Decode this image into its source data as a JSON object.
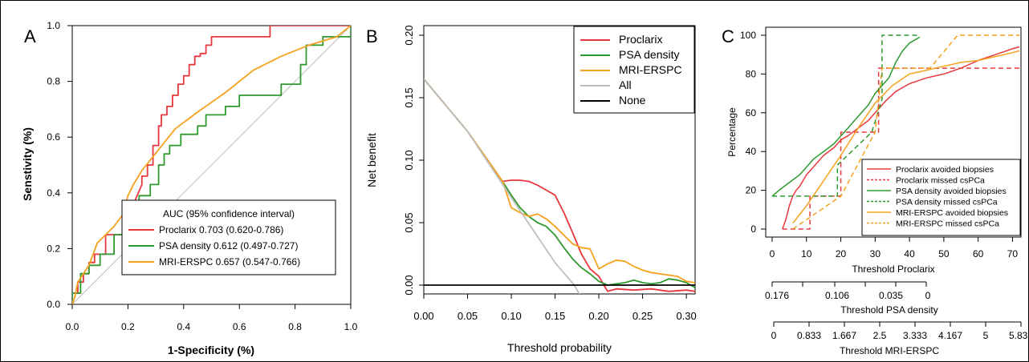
{
  "colors": {
    "proclarix": "#E8383D",
    "psa": "#2E9A2E",
    "mri": "#F5A11E",
    "all": "#BFBFBF",
    "none": "#000000",
    "diag": "#BBBBBB"
  },
  "chart_data": [
    {
      "type": "line",
      "panel_label": "A",
      "xlabel": "1-Specificity (%)",
      "ylabel": "Senstivity (%)",
      "xlim": [
        0,
        1
      ],
      "ylim": [
        0,
        1
      ],
      "x_ticks": [
        "0.0",
        "0.2",
        "0.4",
        "0.6",
        "0.8",
        "1.0"
      ],
      "y_ticks": [
        "0.0",
        "0.2",
        "0.4",
        "0.6",
        "0.8",
        "1.0"
      ],
      "legend_title": "AUC (95% confidence interval)",
      "legend_position": "bottom-right",
      "series": [
        {
          "name": "Proclarix",
          "auc": "0.703 (0.620-0.786)",
          "color": "#E8383D",
          "x": [
            0,
            0,
            0.02,
            0.02,
            0.04,
            0.04,
            0.06,
            0.06,
            0.08,
            0.08,
            0.12,
            0.12,
            0.18,
            0.18,
            0.22,
            0.25,
            0.25,
            0.27,
            0.27,
            0.29,
            0.29,
            0.31,
            0.31,
            0.32,
            0.32,
            0.34,
            0.34,
            0.36,
            0.36,
            0.38,
            0.38,
            0.4,
            0.4,
            0.42,
            0.42,
            0.44,
            0.44,
            0.46,
            0.46,
            0.48,
            0.48,
            0.5,
            0.5,
            0.52,
            0.52,
            0.55,
            0.55,
            0.6,
            0.6,
            0.66,
            0.66,
            0.71,
            0.71,
            1.0,
            1.0
          ],
          "y": [
            0,
            0.04,
            0.04,
            0.08,
            0.08,
            0.11,
            0.11,
            0.15,
            0.15,
            0.18,
            0.18,
            0.25,
            0.25,
            0.32,
            0.36,
            0.43,
            0.46,
            0.46,
            0.5,
            0.5,
            0.57,
            0.57,
            0.64,
            0.64,
            0.68,
            0.68,
            0.71,
            0.71,
            0.75,
            0.75,
            0.79,
            0.79,
            0.82,
            0.82,
            0.86,
            0.86,
            0.89,
            0.89,
            0.9,
            0.9,
            0.93,
            0.93,
            0.96,
            0.96,
            0.96,
            0.96,
            0.96,
            0.96,
            0.96,
            0.96,
            0.96,
            0.96,
            1.0,
            1.0,
            1.0
          ]
        },
        {
          "name": "PSA density",
          "auc": "0.612 (0.497-0.727)",
          "color": "#2E9A2E",
          "x": [
            0,
            0,
            0.03,
            0.03,
            0.06,
            0.06,
            0.1,
            0.1,
            0.15,
            0.15,
            0.2,
            0.2,
            0.24,
            0.24,
            0.28,
            0.28,
            0.31,
            0.31,
            0.33,
            0.33,
            0.35,
            0.35,
            0.39,
            0.39,
            0.45,
            0.45,
            0.48,
            0.48,
            0.55,
            0.55,
            0.6,
            0.6,
            0.7,
            0.7,
            0.75,
            0.75,
            0.82,
            0.82,
            0.84,
            0.84,
            0.9,
            0.9,
            1.0,
            1.0
          ],
          "y": [
            0,
            0.04,
            0.04,
            0.11,
            0.11,
            0.14,
            0.14,
            0.18,
            0.18,
            0.25,
            0.25,
            0.32,
            0.32,
            0.39,
            0.39,
            0.43,
            0.43,
            0.5,
            0.5,
            0.54,
            0.54,
            0.57,
            0.57,
            0.61,
            0.61,
            0.64,
            0.64,
            0.68,
            0.68,
            0.71,
            0.71,
            0.75,
            0.75,
            0.75,
            0.75,
            0.79,
            0.79,
            0.86,
            0.86,
            0.93,
            0.93,
            0.96,
            0.96,
            1.0
          ]
        },
        {
          "name": "MRI-ERSPC",
          "auc": "0.657 (0.547-0.766)",
          "color": "#F5A11E",
          "x": [
            0,
            0.01,
            0.02,
            0.04,
            0.06,
            0.09,
            0.12,
            0.15,
            0.18,
            0.2,
            0.22,
            0.25,
            0.29,
            0.33,
            0.37,
            0.45,
            0.55,
            0.65,
            0.75,
            0.85,
            0.95,
            1.0
          ],
          "y": [
            0,
            0.03,
            0.08,
            0.11,
            0.14,
            0.22,
            0.25,
            0.28,
            0.32,
            0.39,
            0.43,
            0.48,
            0.53,
            0.58,
            0.63,
            0.69,
            0.76,
            0.84,
            0.89,
            0.93,
            0.96,
            1.0
          ]
        }
      ],
      "reference_line": "diagonal"
    },
    {
      "type": "line",
      "panel_label": "B",
      "xlabel": "Threshold probability",
      "ylabel": "Net benefit",
      "xlim": [
        0,
        0.31
      ],
      "ylim": [
        0,
        0.2
      ],
      "x_ticks": [
        "0.00",
        "0.05",
        "0.10",
        "0.15",
        "0.20",
        "0.25",
        "0.30"
      ],
      "y_ticks": [
        "0.00",
        "0.05",
        "0.10",
        "0.15",
        "0.20"
      ],
      "legend_position": "top-right",
      "series": [
        {
          "name": "Proclarix",
          "color": "#E8383D",
          "x": [
            0,
            0.05,
            0.09,
            0.1,
            0.11,
            0.12,
            0.13,
            0.14,
            0.15,
            0.16,
            0.17,
            0.18,
            0.19,
            0.2,
            0.21,
            0.22,
            0.24,
            0.26,
            0.28,
            0.3,
            0.31
          ],
          "y": [
            0.165,
            0.123,
            0.083,
            0.084,
            0.084,
            0.083,
            0.08,
            0.076,
            0.072,
            0.058,
            0.042,
            0.025,
            0.013,
            0.007,
            -0.005,
            -0.003,
            -0.004,
            -0.003,
            -0.005,
            -0.004,
            -0.005
          ]
        },
        {
          "name": "PSA density",
          "color": "#2E9A2E",
          "x": [
            0,
            0.05,
            0.09,
            0.1,
            0.11,
            0.12,
            0.13,
            0.14,
            0.15,
            0.16,
            0.17,
            0.18,
            0.19,
            0.2,
            0.21,
            0.22,
            0.23,
            0.24,
            0.25,
            0.26,
            0.27,
            0.28,
            0.29,
            0.3,
            0.31
          ],
          "y": [
            0.165,
            0.123,
            0.083,
            0.072,
            0.062,
            0.055,
            0.05,
            0.047,
            0.04,
            0.03,
            0.021,
            0.014,
            0.009,
            0.003,
            0.0,
            0.001,
            0.002,
            0.004,
            0.002,
            0.001,
            0.002,
            0.005,
            0.004,
            0.002,
            -0.002
          ]
        },
        {
          "name": "MRI-ERSPC",
          "color": "#F5A11E",
          "x": [
            0,
            0.05,
            0.09,
            0.1,
            0.11,
            0.12,
            0.13,
            0.14,
            0.15,
            0.16,
            0.17,
            0.18,
            0.19,
            0.2,
            0.21,
            0.22,
            0.23,
            0.24,
            0.25,
            0.26,
            0.27,
            0.28,
            0.29,
            0.3,
            0.31
          ],
          "y": [
            0.165,
            0.123,
            0.083,
            0.062,
            0.058,
            0.055,
            0.057,
            0.053,
            0.047,
            0.04,
            0.033,
            0.03,
            0.029,
            0.013,
            0.017,
            0.02,
            0.019,
            0.015,
            0.012,
            0.01,
            0.009,
            0.008,
            0.007,
            0.003,
            0.002
          ]
        },
        {
          "name": "All",
          "color": "#BFBFBF",
          "x": [
            0,
            0.05,
            0.1,
            0.15,
            0.172,
            0.2
          ],
          "y": [
            0.165,
            0.123,
            0.07,
            0.018,
            0.0,
            -0.035
          ]
        },
        {
          "name": "None",
          "color": "#000000",
          "x": [
            0,
            0.31
          ],
          "y": [
            0,
            0
          ]
        }
      ]
    },
    {
      "type": "line",
      "panel_label": "C",
      "xlabel": "Threshold Proclarix",
      "ylabel": "Percentage",
      "xlim": [
        0,
        72
      ],
      "ylim": [
        0,
        100
      ],
      "x_ticks": [
        "0",
        "10",
        "20",
        "30",
        "40",
        "50",
        "60",
        "70"
      ],
      "y_ticks": [
        "0",
        "20",
        "40",
        "60",
        "80",
        "100"
      ],
      "extra_axes": [
        {
          "label": "Threshold PSA density",
          "ticks": [
            "0.176",
            "",
            "0.106",
            "",
            "0.035",
            "0"
          ]
        },
        {
          "label": "Threshold MRI-ERSPC",
          "ticks": [
            "0",
            "0.833",
            "1.667",
            "2.5",
            "3.333",
            "4.167",
            "5",
            "5.833"
          ]
        }
      ],
      "legend_position": "bottom-right",
      "series": [
        {
          "name": "Proclarix avoided biopsies",
          "color": "#E8383D",
          "dash": "solid",
          "x": [
            3,
            4,
            5,
            6,
            7,
            8,
            10,
            12,
            15,
            18,
            20,
            22,
            25,
            28,
            30,
            33,
            36,
            40,
            45,
            50,
            55,
            60,
            65,
            70,
            72
          ],
          "y": [
            0,
            5,
            12,
            17,
            20,
            22,
            28,
            32,
            38,
            42,
            46,
            48,
            52,
            56,
            60,
            66,
            71,
            75,
            78,
            80,
            83,
            87,
            90,
            93,
            94
          ]
        },
        {
          "name": "Proclarix missed csPCa",
          "color": "#E8383D",
          "dash": "dashed",
          "x": [
            3,
            11,
            11,
            20,
            20,
            31,
            31,
            72
          ],
          "y": [
            0,
            0,
            17,
            17,
            50,
            50,
            83,
            83
          ]
        },
        {
          "name": "PSA density avoided biopsies",
          "color": "#2E9A2E",
          "dash": "solid",
          "x": [
            0,
            2,
            5,
            8,
            10,
            12,
            15,
            18,
            20,
            22,
            25,
            28,
            30,
            32,
            34,
            36,
            38,
            40,
            42,
            43
          ],
          "y": [
            17,
            20,
            24,
            28,
            32,
            36,
            40,
            44,
            48,
            52,
            58,
            64,
            70,
            74,
            78,
            86,
            92,
            96,
            98,
            99
          ]
        },
        {
          "name": "PSA density missed csPCa",
          "color": "#2E9A2E",
          "dash": "dashed",
          "x": [
            0,
            19,
            19,
            29,
            29,
            32,
            32,
            43
          ],
          "y": [
            17,
            17,
            33,
            50,
            50,
            67,
            100,
            100
          ]
        },
        {
          "name": "MRI-ERSPC avoided biopsies",
          "color": "#F5A11E",
          "dash": "solid",
          "x": [
            6,
            10,
            15,
            20,
            25,
            30,
            35,
            40,
            45,
            50,
            55,
            60,
            65,
            70,
            72
          ],
          "y": [
            3,
            12,
            25,
            38,
            52,
            65,
            74,
            80,
            82,
            84,
            86,
            87,
            89,
            91,
            92
          ]
        },
        {
          "name": "MRI-ERSPC missed csPCa",
          "color": "#F5A11E",
          "dash": "dashed",
          "x": [
            6,
            20,
            30,
            32,
            46,
            54,
            72
          ],
          "y": [
            0,
            17,
            50,
            83,
            83,
            100,
            100
          ]
        }
      ]
    }
  ]
}
